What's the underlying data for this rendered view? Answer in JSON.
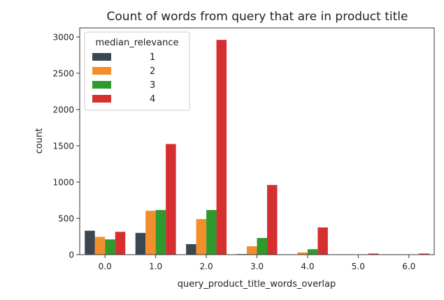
{
  "chart_data": {
    "type": "bar",
    "title": "Count of words from query that are in  product title",
    "xlabel": "query_product_title_words_overlap",
    "ylabel": "count",
    "categories": [
      "0.0",
      "1.0",
      "2.0",
      "3.0",
      "4.0",
      "5.0",
      "6.0"
    ],
    "ylim": [
      0,
      3000
    ],
    "yticks": [
      0,
      500,
      1000,
      1500,
      2000,
      2500,
      3000
    ],
    "grid": false,
    "legend": {
      "title": "median_relevance",
      "placement": "top-left"
    },
    "series": [
      {
        "name": "1",
        "color": "#3a4752",
        "values": [
          330,
          300,
          145,
          8,
          0,
          0,
          0
        ]
      },
      {
        "name": "2",
        "color": "#f28e2b",
        "values": [
          245,
          605,
          490,
          115,
          30,
          2,
          0
        ]
      },
      {
        "name": "3",
        "color": "#2e9a2e",
        "values": [
          210,
          615,
          615,
          230,
          75,
          3,
          2
        ]
      },
      {
        "name": "4",
        "color": "#d62f2f",
        "values": [
          315,
          1525,
          2960,
          960,
          375,
          15,
          15
        ]
      }
    ]
  }
}
